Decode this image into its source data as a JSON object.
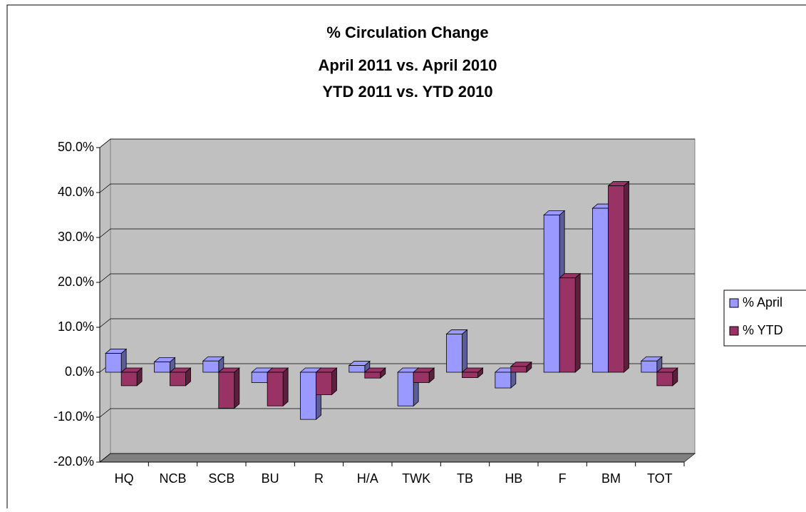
{
  "chart_data": {
    "type": "bar3d",
    "title": [
      "% Circulation Change",
      "April 2011 vs. April 2010",
      "YTD 2011 vs. YTD 2010"
    ],
    "categories": [
      "HQ",
      "NCB",
      "SCB",
      "BU",
      "R",
      "H/A",
      "TWK",
      "TB",
      "HB",
      "F",
      "BM",
      "TOT"
    ],
    "series": [
      {
        "name": "% April",
        "color": "#9999ff",
        "side": "#5c5c99",
        "values": [
          4.2,
          2.3,
          2.5,
          -2.3,
          -10.5,
          1.5,
          -7.5,
          8.5,
          -3.5,
          35,
          36.5,
          2.5
        ]
      },
      {
        "name": "% YTD",
        "color": "#993366",
        "side": "#5c1f3d",
        "values": [
          -3.0,
          -3.0,
          -8.0,
          -7.5,
          -5.0,
          -1.3,
          -2.3,
          -1.2,
          1.3,
          21,
          41.5,
          -3.0
        ]
      }
    ],
    "ylim": [
      -20,
      50
    ],
    "yticks": [
      {
        "value": -20,
        "label": "-20.0%"
      },
      {
        "value": -10,
        "label": "-10.0%"
      },
      {
        "value": 0,
        "label": "0.0%"
      },
      {
        "value": 10,
        "label": "10.0%"
      },
      {
        "value": 20,
        "label": "20.0%"
      },
      {
        "value": 30,
        "label": "30.0%"
      },
      {
        "value": 40,
        "label": "40.0%"
      },
      {
        "value": 50,
        "label": "50.0%"
      }
    ],
    "grid": true,
    "legend": "right"
  }
}
